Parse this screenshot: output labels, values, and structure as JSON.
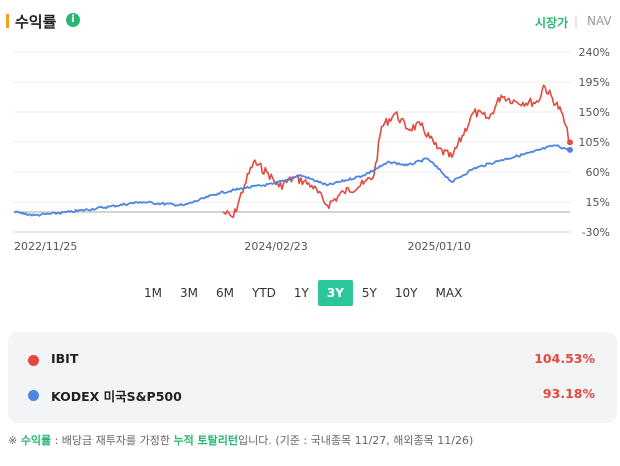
{
  "header": {
    "title": "수익률",
    "info_icon": "i",
    "toggle_market": "시장가",
    "toggle_sep": "|",
    "toggle_nav": "NAV"
  },
  "chart_data": {
    "type": "line",
    "y_ticks": [
      "240%",
      "195%",
      "150%",
      "105%",
      "60%",
      "15%",
      "-30%"
    ],
    "y_tick_values": [
      240,
      195,
      150,
      105,
      60,
      15,
      -30
    ],
    "ylim": [
      -30,
      240
    ],
    "x_ticks": [
      "2022/11/25",
      "2024/02/23",
      "2025/01/10"
    ],
    "grid": true,
    "series": [
      {
        "name": "IBIT",
        "color": "#e5483f",
        "x": [
          "2024/01/11",
          "2024/02/01",
          "2024/02/23",
          "2024/03/12",
          "2024/04/10",
          "2024/05/01",
          "2024/06/01",
          "2024/07/05",
          "2024/08/05",
          "2024/09/06",
          "2024/10/15",
          "2024/11/05",
          "2024/11/20",
          "2024/12/17",
          "2025/01/10",
          "2025/02/05",
          "2025/03/10",
          "2025/04/08",
          "2025/05/21",
          "2025/06/20",
          "2025/07/14",
          "2025/08/14",
          "2025/09/25",
          "2025/10/06",
          "2025/11/10",
          "2025/11/27"
        ],
        "values": [
          0,
          -8,
          40,
          75,
          58,
          38,
          52,
          40,
          10,
          30,
          42,
          55,
          128,
          148,
          125,
          130,
          95,
          82,
          150,
          140,
          175,
          165,
          165,
          190,
          150,
          104.53
        ]
      },
      {
        "name": "KODEX 미국S&P500",
        "color": "#4b86e0",
        "x": [
          "2022/11/25",
          "2023/01/05",
          "2023/03/15",
          "2023/06/01",
          "2023/08/01",
          "2023/10/27",
          "2024/01/02",
          "2024/02/23",
          "2024/04/19",
          "2024/06/14",
          "2024/08/05",
          "2024/10/15",
          "2024/12/06",
          "2025/01/10",
          "2025/02/19",
          "2025/04/08",
          "2025/05/20",
          "2025/07/15",
          "2025/09/15",
          "2025/10/28",
          "2025/11/27"
        ],
        "values": [
          0,
          -5,
          0,
          8,
          15,
          10,
          28,
          36,
          42,
          55,
          40,
          55,
          75,
          70,
          80,
          45,
          65,
          78,
          90,
          100,
          93.18
        ]
      }
    ]
  },
  "periods": [
    "1M",
    "3M",
    "6M",
    "YTD",
    "1Y",
    "3Y",
    "5Y",
    "10Y",
    "MAX"
  ],
  "active_period": "3Y",
  "legend": [
    {
      "name": "IBIT",
      "value": "104.53%",
      "color": "#e5483f"
    },
    {
      "name": "KODEX 미국S&P500",
      "value": "93.18%",
      "color": "#4b86e0"
    }
  ],
  "footnote": {
    "prefix": "※ ",
    "term": "수익률",
    "mid": " : 배당금 재투자를 가정한 ",
    "term2": "누적 토탈리턴",
    "suffix": "입니다. (기준 : 국내종목 11/27, 해외종목 11/26)"
  }
}
